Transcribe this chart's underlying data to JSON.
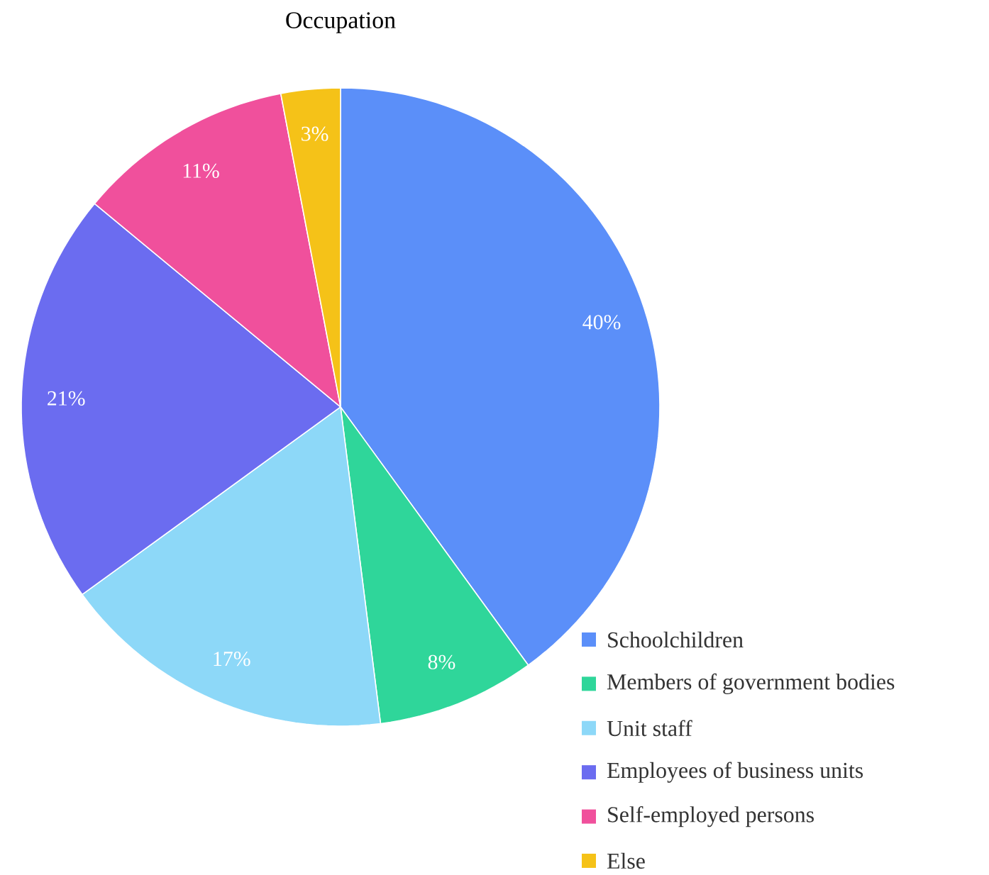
{
  "chart_data": {
    "type": "pie",
    "title": "Occupation",
    "categories": [
      "Schoolchildren",
      "Members of government bodies",
      "Unit staff",
      "Employees of business units",
      "Self-employed persons",
      "Else"
    ],
    "values": [
      40,
      8,
      17,
      21,
      11,
      3
    ],
    "value_labels": [
      "40%",
      "8%",
      "17%",
      "21%",
      "11%",
      "3%"
    ],
    "colors": [
      "#5b8ff9",
      "#2fd69a",
      "#8dd8f8",
      "#6b6cf0",
      "#f0509c",
      "#f5c218"
    ],
    "legend": "bottom right"
  }
}
